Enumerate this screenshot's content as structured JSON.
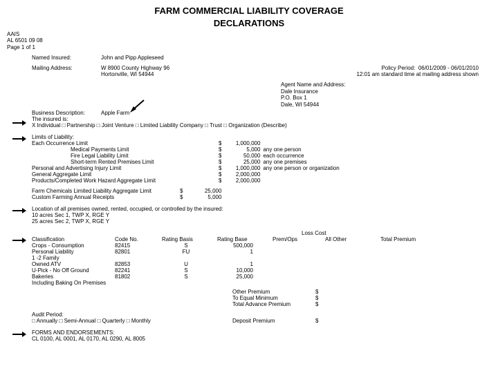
{
  "title1": "FARM COMMERCIAL LIABILITY COVERAGE",
  "title2": "DECLARATIONS",
  "org": "AAIS",
  "form": "AL 6501 09 08",
  "page": "Page 1 of 1",
  "named_insured_label": "Named Insured:",
  "named_insured": "John and Pipp Appleseed",
  "mailing_label": "Mailing Address:",
  "mailing_line1": "W 8900 County Highway 96",
  "mailing_line2": "Hortonville, WI 54944",
  "policy_period_label": "Policy Period:",
  "policy_period": "06/01/2009 - 06/01/2010",
  "policy_time": "12:01 am standard time at mailing address shown",
  "agent_label": "Agent Name and Address:",
  "agent_line1": "Dale Insurance",
  "agent_line2": "P.O. Box 1",
  "agent_line3": "Dale, WI 54944",
  "bus_desc_label": "Business Description:",
  "bus_desc": "Apple Farm",
  "insured_is_label": "The insured is:",
  "insured_type_line": "X Individual □ Partnership     □ Joint Venture    □ Limited Liability Company      □ Trust      □ Organization (Describe)",
  "limits_label": "Limits of Liability:",
  "limits": [
    {
      "name": "Each Occurrence Limit",
      "amt": "1,000,000",
      "note": ""
    },
    {
      "name": "Medical Payments Limit",
      "amt": "5,000",
      "note": "any one person",
      "indent": true
    },
    {
      "name": "Fire Legal Liability Limit",
      "amt": "50,000",
      "note": "each occurrence",
      "indent": true
    },
    {
      "name": "Short-term Rented Premises Limit",
      "amt": "25,000",
      "note": "any one premises",
      "indent": true
    },
    {
      "name": "Personal and Advertising Injury Limit",
      "amt": "1,000,000",
      "note": "any one person or organization"
    },
    {
      "name": "General Aggregate Limit",
      "amt": "2,000,000",
      "note": ""
    },
    {
      "name": "Products/Completed Work Hazard Aggregate Limit",
      "amt": "2,000,000",
      "note": ""
    }
  ],
  "limits2": [
    {
      "name": "Farm Chemicals Limited Liability Aggregate Limit",
      "amt": "25,000"
    },
    {
      "name": "Custom Farming Annual Receipts",
      "amt": "5,000"
    }
  ],
  "premises_label": "Location of all premises owned, rented, occupied, or controlled by the insured:",
  "premises_line1": "10 acres Sec 1, TWP X, RGE Y",
  "premises_line2": "25 acres Sec 2, TWP X, RGE Y",
  "loss_cost_label": "Loss Cost",
  "class_headers": [
    "Classification",
    "Code No.",
    "Rating Basis",
    "Rating Base",
    "Prem/Ops",
    "All Other",
    "Total Premium"
  ],
  "class_rows": [
    {
      "c": "Crops - Consumption",
      "n": "82415",
      "b": "S",
      "base": "500,000"
    },
    {
      "c": "Personal Liability",
      "n": "82801",
      "b": "FU",
      "base": "1"
    },
    {
      "c": "1 -2 Family",
      "n": "",
      "b": "",
      "base": ""
    },
    {
      "c": "Owned ATV",
      "n": "82853",
      "b": "U",
      "base": "1"
    },
    {
      "c": "U-Pick - No Off Ground",
      "n": "82241",
      "b": "S",
      "base": "10,000"
    },
    {
      "c": "Bakeries",
      "n": "81802",
      "b": "S",
      "base": "25,000"
    },
    {
      "c": "Including Baking On Premises",
      "n": "",
      "b": "",
      "base": ""
    }
  ],
  "other_premium_label": "Other Premium",
  "equal_min_label": "To Equal Minimum",
  "total_adv_label": "Total Advance Premium",
  "audit_label": "Audit Period:",
  "audit_line": "□ Annually     □ Semi-Annual     □ Quarterly     □ Monthly",
  "deposit_label": "Deposit Premium",
  "forms_label": "FORMS AND ENDORSEMENTS:",
  "forms_line": "CL 0100, AL 0001, AL 0170, AL 0290, AL 8005"
}
